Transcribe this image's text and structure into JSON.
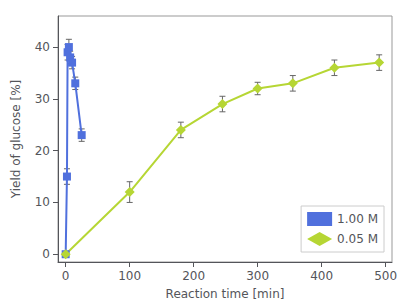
{
  "chart_data": {
    "type": "line",
    "xlabel": "Reaction time [min]",
    "ylabel": "Yield of glucose [%]",
    "series": [
      {
        "name": "1.00 M",
        "marker": "square",
        "x": [
          0,
          2,
          3,
          5,
          7,
          10,
          15,
          25
        ],
        "values": [
          0,
          15,
          39,
          40,
          38,
          37,
          33,
          23
        ],
        "yerr": [
          0.5,
          1.5,
          1.5,
          1.5,
          1.2,
          1.2,
          1.2,
          1.2
        ]
      },
      {
        "name": "0.05 M",
        "marker": "diamond",
        "x": [
          0,
          100,
          180,
          245,
          300,
          355,
          420,
          490
        ],
        "values": [
          0,
          12,
          24,
          29,
          32,
          33,
          36,
          37
        ],
        "yerr": [
          0.5,
          2.0,
          1.5,
          1.5,
          1.2,
          1.5,
          1.5,
          1.5
        ]
      }
    ],
    "xlim": [
      -12,
      510
    ],
    "ylim": [
      -1.5,
      46
    ],
    "xticks": [
      0,
      100,
      200,
      300,
      400,
      500
    ],
    "yticks": [
      0,
      10,
      20,
      30,
      40
    ],
    "grid": false,
    "legend": "lower right"
  }
}
